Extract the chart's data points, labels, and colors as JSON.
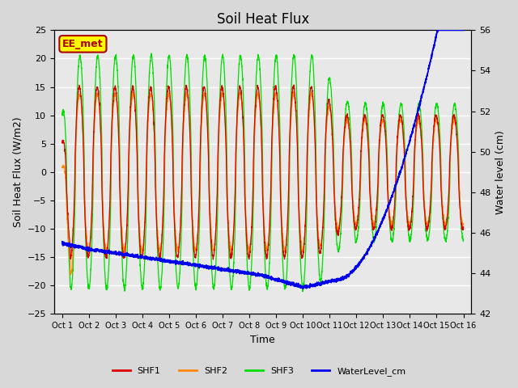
{
  "title": "Soil Heat Flux",
  "xlabel": "Time",
  "ylabel_left": "Soil Heat Flux (W/m2)",
  "ylabel_right": "Water level (cm)",
  "ylim_left": [
    -25,
    25
  ],
  "ylim_right": [
    42,
    56
  ],
  "yticks_left": [
    -25,
    -20,
    -15,
    -10,
    -5,
    0,
    5,
    10,
    15,
    20,
    25
  ],
  "yticks_right": [
    42,
    44,
    46,
    48,
    50,
    52,
    54,
    56
  ],
  "xtick_labels": [
    "Oct 1",
    "Oct 2",
    "Oct 3",
    "Oct 4",
    "Oct 5",
    "Oct 6",
    "Oct 7",
    "Oct 8",
    "Oct 9",
    "Oct 10",
    "Oct 11",
    "Oct 12",
    "Oct 13",
    "Oct 14",
    "Oct 15",
    "Oct 16"
  ],
  "bg_color": "#d8d8d8",
  "plot_bg_color": "#e8e8e8",
  "shf1_color": "#dd0000",
  "shf2_color": "#ff8800",
  "shf3_color": "#00dd00",
  "water_color": "#0000ee",
  "legend_label_shf1": "SHF1",
  "legend_label_shf2": "SHF2",
  "legend_label_shf3": "SHF3",
  "legend_label_water": "WaterLevel_cm",
  "station_label": "EE_met",
  "station_box_facecolor": "#ffff00",
  "station_box_edgecolor": "#aa0000",
  "station_text_color": "#aa0000"
}
